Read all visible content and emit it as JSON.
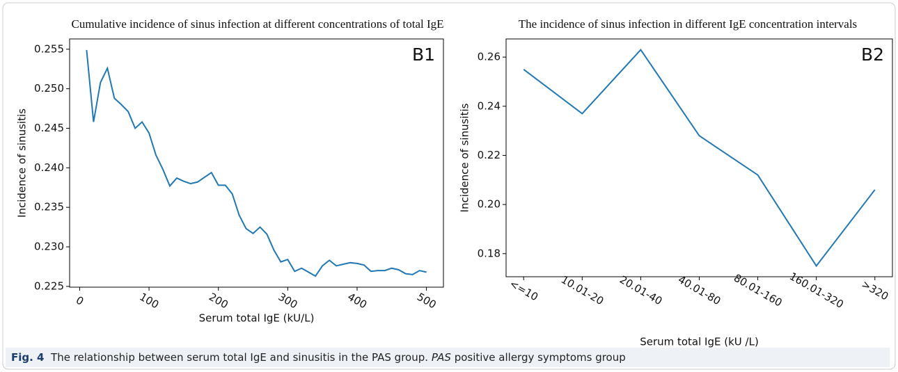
{
  "chart_data": [
    {
      "type": "line",
      "title": "Cumulative incidence of sinus infection at different concentrations of total IgE",
      "panel_label": "B1",
      "xlabel": "Serum total IgE (kU/L)",
      "ylabel": "Incidence of sinusitis",
      "color": "#1f77b4",
      "x": [
        10,
        20,
        30,
        40,
        50,
        60,
        70,
        80,
        90,
        100,
        110,
        120,
        130,
        140,
        150,
        160,
        170,
        180,
        190,
        200,
        210,
        220,
        230,
        240,
        250,
        260,
        270,
        280,
        290,
        300,
        310,
        320,
        330,
        340,
        350,
        360,
        370,
        380,
        390,
        400,
        410,
        420,
        430,
        440,
        450,
        460,
        470,
        480,
        490,
        500
      ],
      "values": [
        0.2549,
        0.2458,
        0.2508,
        0.2526,
        0.2488,
        0.248,
        0.2471,
        0.245,
        0.2458,
        0.2444,
        0.2416,
        0.2398,
        0.2377,
        0.2387,
        0.2383,
        0.238,
        0.2382,
        0.2388,
        0.2394,
        0.2378,
        0.2378,
        0.2367,
        0.234,
        0.2323,
        0.2317,
        0.2325,
        0.2316,
        0.2296,
        0.2281,
        0.2284,
        0.2269,
        0.2273,
        0.2268,
        0.2263,
        0.2276,
        0.2283,
        0.2276,
        0.2278,
        0.228,
        0.2279,
        0.2277,
        0.2269,
        0.227,
        0.227,
        0.2273,
        0.2271,
        0.2266,
        0.2265,
        0.227,
        0.2268
      ],
      "xlim": [
        -14.5,
        524.5
      ],
      "xticks": [
        0,
        100,
        200,
        300,
        400,
        500
      ],
      "ylim": [
        0.2249,
        0.2563
      ],
      "yticks": [
        0.225,
        {
          "value": 0.23,
          "label": "0.230"
        },
        0.235,
        {
          "value": 0.24,
          "label": "0.240"
        },
        0.245,
        {
          "value": 0.25,
          "label": "0.250"
        },
        0.255
      ]
    },
    {
      "type": "line",
      "title": "The incidence of sinus infection in different IgE concentration intervals",
      "panel_label": "B2",
      "xlabel": "Serum total IgE (kU /L)",
      "ylabel": "Incidence of sinusitis",
      "color": "#1f77b4",
      "categories": [
        "<=10",
        "10.01-20",
        "20.01-40",
        "40.01-80",
        "80.01-160",
        "160.01-320",
        ">320"
      ],
      "values": [
        0.255,
        0.237,
        0.263,
        0.228,
        0.212,
        0.175,
        0.206
      ],
      "ylim": [
        0.1706,
        0.2674
      ],
      "yticks": [
        0.18,
        {
          "value": 0.2,
          "label": "0.20"
        },
        0.22,
        0.24,
        0.26
      ]
    }
  ],
  "caption": {
    "label": "Fig. 4",
    "text": "The relationship between serum total IgE and sinusitis in the PAS group.",
    "abbreviation": "PAS",
    "abbreviation_text": "positive allergy symptoms group"
  }
}
